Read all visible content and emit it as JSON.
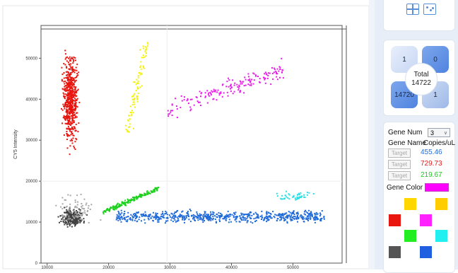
{
  "chart_data": {
    "type": "scatter",
    "ylabel": "CY5 Intensity",
    "xlim": [
      9000,
      58000
    ],
    "ylim": [
      0,
      58000
    ],
    "x_ticks": [
      10000,
      20000,
      30000,
      40000,
      50000
    ],
    "y_ticks": [
      0,
      10000,
      20000,
      30000,
      40000,
      50000
    ],
    "x_tick_labels": [
      "10000",
      "20000",
      "30000",
      "40000",
      "50000"
    ],
    "y_tick_labels": [
      "0",
      "10000",
      "20000",
      "30000",
      "40000",
      "50000"
    ],
    "grid": false,
    "clusters": [
      {
        "color": "#e8160f",
        "x_range": [
          12000,
          15300
        ],
        "y_range": [
          26000,
          54000
        ],
        "count": 600
      },
      {
        "color": "#f2f20c",
        "x_range": [
          21500,
          27500
        ],
        "y_range": [
          32000,
          54000
        ],
        "count": 90
      },
      {
        "color": "#e81ae8",
        "x_range": [
          29500,
          48500
        ],
        "y_range": [
          31500,
          50000
        ],
        "count": 170
      },
      {
        "color": "#3f3f3f",
        "x_range": [
          11500,
          16500
        ],
        "y_range": [
          8500,
          14000
        ],
        "count": 260
      },
      {
        "color": "#a8a8a8",
        "x_range": [
          10000,
          19000
        ],
        "y_range": [
          8000,
          18000
        ],
        "count": 80
      },
      {
        "color": "#1cd11c",
        "x_range": [
          19000,
          28000
        ],
        "y_range": [
          11000,
          20000
        ],
        "count": 180
      },
      {
        "color": "#1f6ad8",
        "x_range": [
          21000,
          55000
        ],
        "y_range": [
          9500,
          13500
        ],
        "count": 650
      },
      {
        "color": "#22e0e8",
        "x_range": [
          44000,
          56000
        ],
        "y_range": [
          15000,
          18000
        ],
        "count": 45
      }
    ]
  },
  "quadrants": {
    "top_left": "1",
    "top_right": "0",
    "bottom_left": "14720",
    "bottom_right": "1",
    "total_label": "Total",
    "total_value": "14722"
  },
  "gene_panel": {
    "gene_num_label": "Gene Num",
    "gene_num_value": "3",
    "gene_name_label": "Gene Name",
    "copies_label": "Copies/uL",
    "targets": [
      {
        "label": "Target",
        "copies": "455.46",
        "color": "#1f6ad8"
      },
      {
        "label": "Target",
        "copies": "729.73",
        "color": "#e01b1b"
      },
      {
        "label": "Target",
        "copies": "219.67",
        "color": "#22c422"
      }
    ],
    "gene_color_label": "Gene Color",
    "selected_color": "#ff00ff",
    "palette": [
      "#ffd700",
      "#ffcc00",
      "#e8160f",
      "#ff22ff",
      "#22ee22",
      "#22f0f0",
      "#555555",
      "#1f5fe0"
    ]
  },
  "icons": {
    "view_left": "grid-view-icon",
    "view_right": "scatter-view-icon",
    "dropdown": "chevron-down-icon"
  }
}
